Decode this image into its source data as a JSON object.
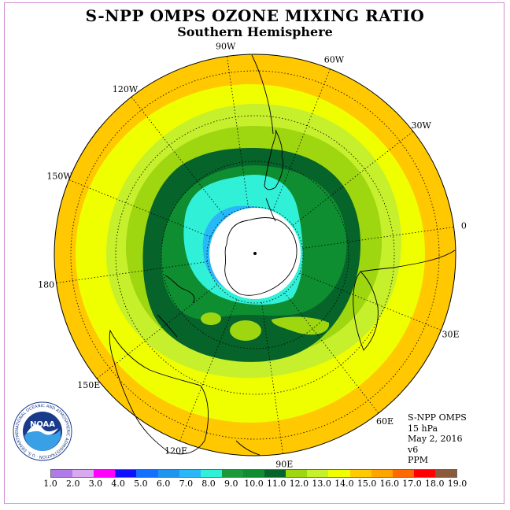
{
  "title": "S-NPP OMPS OZONE MIXING RATIO",
  "subtitle": "Southern Hemisphere",
  "longitude_labels": [
    "0",
    "30E",
    "60E",
    "90E",
    "120E",
    "150E",
    "180",
    "150W",
    "120W",
    "90W",
    "60W",
    "30W"
  ],
  "info": {
    "instrument": "S-NPP OMPS",
    "level": "15 hPa",
    "date": "May 2, 2016",
    "version": "v6",
    "units": "PPM"
  },
  "logo": {
    "text": "NOAA",
    "ring_text": "NATIONAL OCEANIC AND ATMOSPHERIC ADMINISTRATION · U.S. DEPARTMENT OF COMMERCE"
  },
  "colorbar": {
    "labels": [
      "1.0",
      "2.0",
      "3.0",
      "4.0",
      "5.0",
      "6.0",
      "7.0",
      "8.0",
      "9.0",
      "10.0",
      "11.0",
      "12.0",
      "13.0",
      "14.0",
      "15.0",
      "16.0",
      "17.0",
      "18.0",
      "19.0"
    ],
    "colors": [
      "#b07ae8",
      "#d8a8f0",
      "#ff00ff",
      "#1010ff",
      "#1470ff",
      "#1e96f0",
      "#28b8f8",
      "#30f0d8",
      "#1b9a3c",
      "#0e8e30",
      "#06632a",
      "#9ed610",
      "#c6f02c",
      "#f0ff00",
      "#ffca00",
      "#ffa400",
      "#ff6a00",
      "#ff0000",
      "#8b5a3c"
    ]
  },
  "colors": {
    "outer_band": "#ffc800",
    "yellow_band": "#f0ff00",
    "light_green": "#c6f02c",
    "mid_green": "#9ed610",
    "dark_green": "#06632a",
    "green": "#0e8e30",
    "cyan": "#30f0d8",
    "light_blue": "#28b8f8",
    "hole": "#ffffff"
  }
}
